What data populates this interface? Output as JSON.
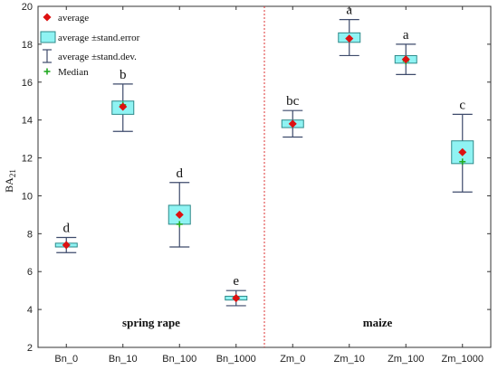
{
  "chart_data": {
    "type": "box",
    "ylabel": "BA",
    "ylabel_sub": "21",
    "ylim": [
      2,
      20
    ],
    "y_ticks": [
      2,
      4,
      6,
      8,
      10,
      12,
      14,
      16,
      18,
      20
    ],
    "grid": false,
    "categories": [
      "Bn_0",
      "Bn_10",
      "Bn_100",
      "Bn_1000",
      "Zm_0",
      "Zm_10",
      "Zm_100",
      "Zm_1000"
    ],
    "average": [
      7.4,
      14.7,
      9.0,
      4.6,
      13.8,
      18.3,
      17.2,
      12.3
    ],
    "stand_error_low": [
      7.3,
      14.3,
      8.5,
      4.5,
      13.6,
      18.1,
      17.0,
      11.7
    ],
    "stand_error_high": [
      7.5,
      15.0,
      9.5,
      4.7,
      14.0,
      18.6,
      17.4,
      12.9
    ],
    "stand_dev_low": [
      7.0,
      13.4,
      7.3,
      4.2,
      13.1,
      17.4,
      16.4,
      10.2
    ],
    "stand_dev_high": [
      7.8,
      15.9,
      10.7,
      5.0,
      14.5,
      19.3,
      18.0,
      14.3
    ],
    "median": [
      7.4,
      14.8,
      8.5,
      4.6,
      13.8,
      18.3,
      17.1,
      11.8
    ],
    "letters": [
      "d",
      "b",
      "d",
      "e",
      "bc",
      "a",
      "a",
      "c"
    ],
    "groups": [
      {
        "label": "spring rape",
        "from": 0,
        "to": 3
      },
      {
        "label": "maize",
        "from": 4,
        "to": 7
      }
    ],
    "legend": {
      "placement": "top-left",
      "items": [
        {
          "kind": "point",
          "text": "average"
        },
        {
          "kind": "box",
          "text": "average ±stand.error"
        },
        {
          "kind": "whisker",
          "text": "average ±stand.dev."
        },
        {
          "kind": "median",
          "text": "Median"
        }
      ]
    },
    "colors": {
      "average": "#dd1111",
      "box_fill": "#8ff3f3",
      "box_stroke": "#2e8a8a",
      "whisker": "#3d4a6b",
      "median": "#22aa22",
      "divider": "#dd3333"
    }
  }
}
